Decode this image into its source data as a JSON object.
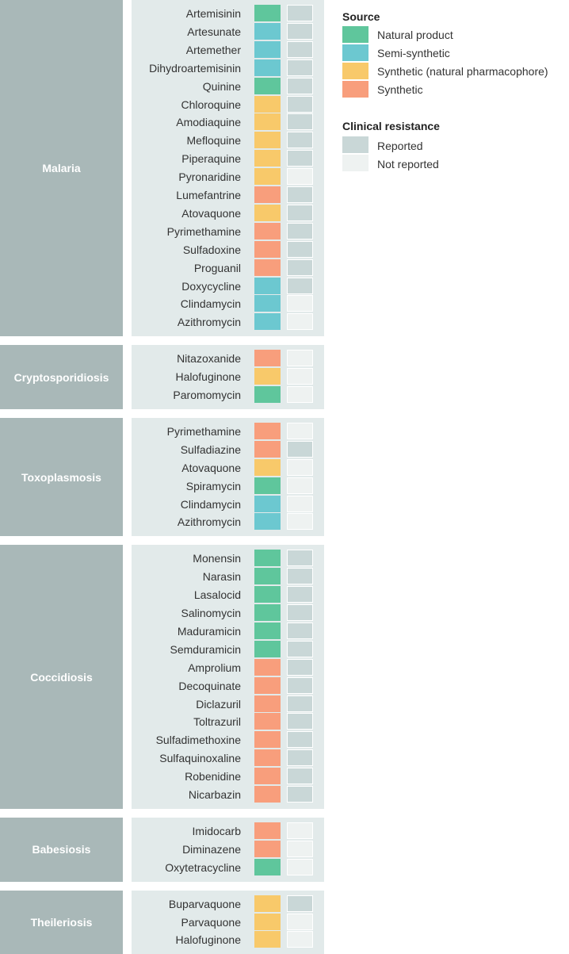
{
  "chart_data": {
    "type": "heatmap",
    "columns": [
      "Source",
      "Clinical resistance"
    ],
    "legend": {
      "source": {
        "title": "Source",
        "items": [
          {
            "key": "natural",
            "label": "Natural product",
            "color": "#5fc69c"
          },
          {
            "key": "semi",
            "label": "Semi-synthetic",
            "color": "#6cc8d0"
          },
          {
            "key": "synthnat",
            "label": "Synthetic (natural pharmacophore)",
            "color": "#f8c96a"
          },
          {
            "key": "synthetic",
            "label": "Synthetic",
            "color": "#f89e7c"
          }
        ]
      },
      "resistance": {
        "title": "Clinical resistance",
        "items": [
          {
            "key": "reported",
            "label": "Reported",
            "color": "#c9d7d7"
          },
          {
            "key": "not",
            "label": "Not reported",
            "color": "#eef2f1"
          }
        ]
      }
    },
    "groups": [
      {
        "disease": "Malaria",
        "drugs": [
          {
            "name": "Artemisinin",
            "source": "natural",
            "resistance": "reported"
          },
          {
            "name": "Artesunate",
            "source": "semi",
            "resistance": "reported"
          },
          {
            "name": "Artemether",
            "source": "semi",
            "resistance": "reported"
          },
          {
            "name": "Dihydroartemisinin",
            "source": "semi",
            "resistance": "reported"
          },
          {
            "name": "Quinine",
            "source": "natural",
            "resistance": "reported"
          },
          {
            "name": "Chloroquine",
            "source": "synthnat",
            "resistance": "reported"
          },
          {
            "name": "Amodiaquine",
            "source": "synthnat",
            "resistance": "reported"
          },
          {
            "name": "Mefloquine",
            "source": "synthnat",
            "resistance": "reported"
          },
          {
            "name": "Piperaquine",
            "source": "synthnat",
            "resistance": "reported"
          },
          {
            "name": "Pyronaridine",
            "source": "synthnat",
            "resistance": "not"
          },
          {
            "name": "Lumefantrine",
            "source": "synthetic",
            "resistance": "reported"
          },
          {
            "name": "Atovaquone",
            "source": "synthnat",
            "resistance": "reported"
          },
          {
            "name": "Pyrimethamine",
            "source": "synthetic",
            "resistance": "reported"
          },
          {
            "name": "Sulfadoxine",
            "source": "synthetic",
            "resistance": "reported"
          },
          {
            "name": "Proguanil",
            "source": "synthetic",
            "resistance": "reported"
          },
          {
            "name": "Doxycycline",
            "source": "semi",
            "resistance": "reported"
          },
          {
            "name": "Clindamycin",
            "source": "semi",
            "resistance": "not"
          },
          {
            "name": "Azithromycin",
            "source": "semi",
            "resistance": "not"
          }
        ]
      },
      {
        "disease": "Cryptosporidiosis",
        "drugs": [
          {
            "name": "Nitazoxanide",
            "source": "synthetic",
            "resistance": "not"
          },
          {
            "name": "Halofuginone",
            "source": "synthnat",
            "resistance": "not"
          },
          {
            "name": "Paromomycin",
            "source": "natural",
            "resistance": "not"
          }
        ]
      },
      {
        "disease": "Toxoplasmosis",
        "drugs": [
          {
            "name": "Pyrimethamine",
            "source": "synthetic",
            "resistance": "not"
          },
          {
            "name": "Sulfadiazine",
            "source": "synthetic",
            "resistance": "reported"
          },
          {
            "name": "Atovaquone",
            "source": "synthnat",
            "resistance": "not"
          },
          {
            "name": "Spiramycin",
            "source": "natural",
            "resistance": "not"
          },
          {
            "name": "Clindamycin",
            "source": "semi",
            "resistance": "not"
          },
          {
            "name": "Azithromycin",
            "source": "semi",
            "resistance": "not"
          }
        ]
      },
      {
        "disease": "Coccidiosis",
        "drugs": [
          {
            "name": "Monensin",
            "source": "natural",
            "resistance": "reported"
          },
          {
            "name": "Narasin",
            "source": "natural",
            "resistance": "reported"
          },
          {
            "name": "Lasalocid",
            "source": "natural",
            "resistance": "reported"
          },
          {
            "name": "Salinomycin",
            "source": "natural",
            "resistance": "reported"
          },
          {
            "name": "Maduramicin",
            "source": "natural",
            "resistance": "reported"
          },
          {
            "name": "Semduramicin",
            "source": "natural",
            "resistance": "reported"
          },
          {
            "name": "Amprolium",
            "source": "synthetic",
            "resistance": "reported"
          },
          {
            "name": "Decoquinate",
            "source": "synthetic",
            "resistance": "reported"
          },
          {
            "name": "Diclazuril",
            "source": "synthetic",
            "resistance": "reported"
          },
          {
            "name": "Toltrazuril",
            "source": "synthetic",
            "resistance": "reported"
          },
          {
            "name": "Sulfadimethoxine",
            "source": "synthetic",
            "resistance": "reported"
          },
          {
            "name": "Sulfaquinoxaline",
            "source": "synthetic",
            "resistance": "reported"
          },
          {
            "name": "Robenidine",
            "source": "synthetic",
            "resistance": "reported"
          },
          {
            "name": "Nicarbazin",
            "source": "synthetic",
            "resistance": "reported"
          }
        ]
      },
      {
        "disease": "Babesiosis",
        "drugs": [
          {
            "name": "Imidocarb",
            "source": "synthetic",
            "resistance": "not"
          },
          {
            "name": "Diminazene",
            "source": "synthetic",
            "resistance": "not"
          },
          {
            "name": "Oxytetracycline",
            "source": "natural",
            "resistance": "not"
          }
        ]
      },
      {
        "disease": "Theileriosis",
        "drugs": [
          {
            "name": "Buparvaquone",
            "source": "synthnat",
            "resistance": "reported"
          },
          {
            "name": "Parvaquone",
            "source": "synthnat",
            "resistance": "not"
          },
          {
            "name": "Halofuginone",
            "source": "synthnat",
            "resistance": "not"
          }
        ]
      }
    ]
  }
}
